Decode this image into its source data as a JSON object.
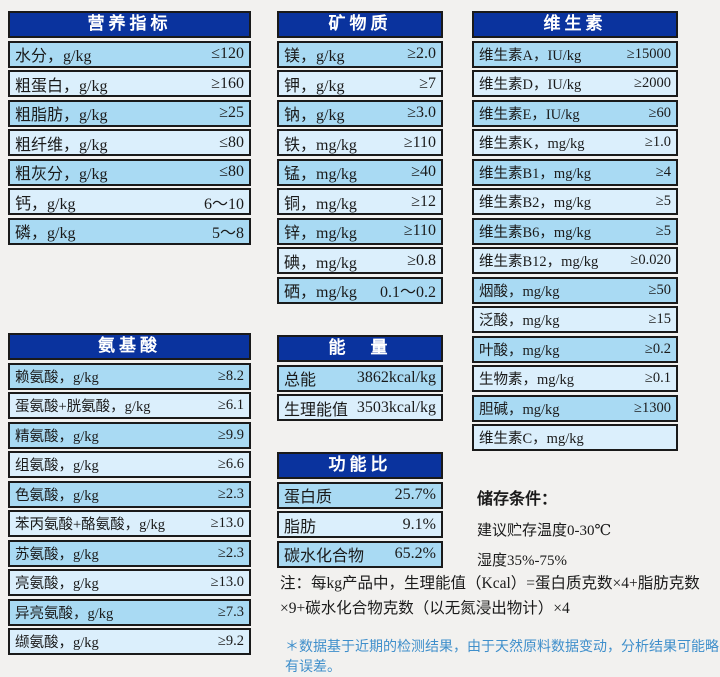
{
  "colors": {
    "header_bg": "#0a339e",
    "row_medium": "#a9daf3",
    "row_light": "#dbeffc",
    "border": "#1a1a1a",
    "page_bg": "#f2f1ef",
    "disclaimer_blue": "#3f8fcb"
  },
  "tables": {
    "nutrition": {
      "title": "营养指标",
      "rows": [
        {
          "label": "水分，g/kg",
          "value": "≤120"
        },
        {
          "label": "粗蛋白，g/kg",
          "value": "≥160"
        },
        {
          "label": "粗脂肪，g/kg",
          "value": "≥25"
        },
        {
          "label": "粗纤维，g/kg",
          "value": "≤80"
        },
        {
          "label": "粗灰分，g/kg",
          "value": "≤80"
        },
        {
          "label": "钙，g/kg",
          "value": "6～10"
        },
        {
          "label": "磷，g/kg",
          "value": "5～8"
        }
      ]
    },
    "minerals": {
      "title": "矿物质",
      "rows": [
        {
          "label": "镁，g/kg",
          "value": "≥2.0"
        },
        {
          "label": "钾，g/kg",
          "value": "≥7"
        },
        {
          "label": "钠，g/kg",
          "value": "≥3.0"
        },
        {
          "label": "铁，mg/kg",
          "value": "≥110"
        },
        {
          "label": "锰，mg/kg",
          "value": "≥40"
        },
        {
          "label": "铜，mg/kg",
          "value": "≥12"
        },
        {
          "label": "锌，mg/kg",
          "value": "≥110"
        },
        {
          "label": "碘，mg/kg",
          "value": "≥0.8"
        },
        {
          "label": "硒，mg/kg",
          "value": "0.1～0.2"
        }
      ]
    },
    "vitamins": {
      "title": "维生素",
      "rows": [
        {
          "label": "维生素A，IU/kg",
          "value": "≥15000"
        },
        {
          "label": "维生素D，IU/kg",
          "value": "≥2000"
        },
        {
          "label": "维生素E，IU/kg",
          "value": "≥60"
        },
        {
          "label": "维生素K，mg/kg",
          "value": "≥1.0"
        },
        {
          "label": "维生素B1，mg/kg",
          "value": "≥4"
        },
        {
          "label": "维生素B2，mg/kg",
          "value": "≥5"
        },
        {
          "label": "维生素B6，mg/kg",
          "value": "≥5"
        },
        {
          "label": "维生素B12，mg/kg",
          "value": "≥0.020"
        },
        {
          "label": "烟酸，mg/kg",
          "value": "≥50"
        },
        {
          "label": "泛酸，mg/kg",
          "value": "≥15"
        },
        {
          "label": "叶酸，mg/kg",
          "value": "≥0.2"
        },
        {
          "label": "生物素，mg/kg",
          "value": "≥0.1"
        },
        {
          "label": "胆碱，mg/kg",
          "value": "≥1300"
        },
        {
          "label": "维生素C，mg/kg",
          "value": ""
        }
      ]
    },
    "amino_acids": {
      "title": "氨基酸",
      "rows": [
        {
          "label": "赖氨酸，g/kg",
          "value": "≥8.2"
        },
        {
          "label": "蛋氨酸+胱氨酸，g/kg",
          "value": "≥6.1"
        },
        {
          "label": "精氨酸，g/kg",
          "value": "≥9.9"
        },
        {
          "label": "组氨酸，g/kg",
          "value": "≥6.6"
        },
        {
          "label": "色氨酸，g/kg",
          "value": "≥2.3"
        },
        {
          "label": "苯丙氨酸+酪氨酸，g/kg",
          "value": "≥13.0"
        },
        {
          "label": "苏氨酸，g/kg",
          "value": "≥2.3"
        },
        {
          "label": "亮氨酸，g/kg",
          "value": "≥13.0"
        },
        {
          "label": "异亮氨酸，g/kg",
          "value": "≥7.3"
        },
        {
          "label": "缬氨酸，g/kg",
          "value": "≥9.2"
        }
      ]
    },
    "energy": {
      "title": "能　量",
      "rows": [
        {
          "label": "总能",
          "value": "3862kcal/kg"
        },
        {
          "label": "生理能值",
          "value": "3503kcal/kg"
        }
      ]
    },
    "ratio": {
      "title": "功能比",
      "rows": [
        {
          "label": "蛋白质",
          "value": "25.7%"
        },
        {
          "label": "脂肪",
          "value": "9.1%"
        },
        {
          "label": "碳水化合物",
          "value": "65.2%"
        }
      ]
    }
  },
  "storage": {
    "title": "储存条件：",
    "temperature": "建议贮存温度0-30℃",
    "humidity": "湿度35%-75%"
  },
  "notes": {
    "formula": "注：每kg产品中，生理能值（Kcal）=蛋白质克数×4+脂肪克数×9+碳水化合物克数（以无氮浸出物计）×4",
    "disclaimer": "＊数据基于近期的检测结果，由于天然原料数据变动，分析结果可能略有误差。"
  }
}
